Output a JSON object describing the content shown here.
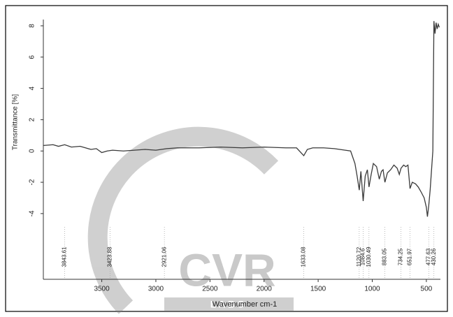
{
  "chart_data": {
    "type": "line",
    "x_label": "Wavenumber cm-1",
    "y_label": "Transmittance [%]",
    "xlim": [
      4040,
      370
    ],
    "ylim": [
      -8.2,
      8.4
    ],
    "xticks": [
      3500,
      3000,
      2500,
      2000,
      1500,
      1000,
      500
    ],
    "yticks": [
      -4,
      -2,
      0,
      2,
      4,
      6,
      8
    ],
    "color": "#3a3a3a",
    "x": [
      4040,
      3950,
      3900,
      3843,
      3780,
      3700,
      3650,
      3600,
      3550,
      3500,
      3450,
      3400,
      3300,
      3200,
      3100,
      3000,
      2900,
      2800,
      2600,
      2400,
      2200,
      2000,
      1800,
      1700,
      1660,
      1633,
      1600,
      1550,
      1450,
      1350,
      1250,
      1200,
      1160,
      1140,
      1120,
      1105,
      1084,
      1065,
      1045,
      1030,
      1010,
      990,
      960,
      935,
      915,
      900,
      883,
      860,
      830,
      800,
      770,
      750,
      734,
      710,
      690,
      670,
      651,
      630,
      600,
      575,
      550,
      520,
      500,
      490,
      478,
      465,
      450,
      440,
      430,
      420,
      410,
      400,
      390,
      380
    ],
    "values": [
      0.35,
      0.4,
      0.3,
      0.4,
      0.25,
      0.3,
      0.2,
      0.1,
      0.15,
      -0.1,
      0.0,
      0.05,
      0.0,
      0.05,
      0.1,
      0.05,
      0.15,
      0.2,
      0.2,
      0.25,
      0.2,
      0.25,
      0.2,
      0.2,
      -0.1,
      -0.3,
      0.1,
      0.2,
      0.2,
      0.15,
      0.05,
      0.0,
      -0.8,
      -1.6,
      -2.5,
      -1.3,
      -3.2,
      -1.6,
      -1.2,
      -2.3,
      -1.5,
      -0.8,
      -1.0,
      -1.8,
      -1.3,
      -1.2,
      -2.0,
      -1.4,
      -1.2,
      -0.9,
      -1.1,
      -1.5,
      -1.1,
      -0.9,
      -1.0,
      -0.9,
      -2.4,
      -2.0,
      -2.1,
      -2.3,
      -2.6,
      -3.0,
      -3.6,
      -4.2,
      -3.5,
      -2.5,
      -1.0,
      0.0,
      8.3,
      7.5,
      8.2,
      7.8,
      8.1,
      7.9
    ],
    "peaks": [
      3843.61,
      3423.88,
      2921.06,
      1633.08,
      1120.72,
      1084.6,
      1030.49,
      883.05,
      734.25,
      651.97,
      477.63,
      430.26
    ],
    "watermark": [
      "CVR",
      "L A B S"
    ]
  }
}
